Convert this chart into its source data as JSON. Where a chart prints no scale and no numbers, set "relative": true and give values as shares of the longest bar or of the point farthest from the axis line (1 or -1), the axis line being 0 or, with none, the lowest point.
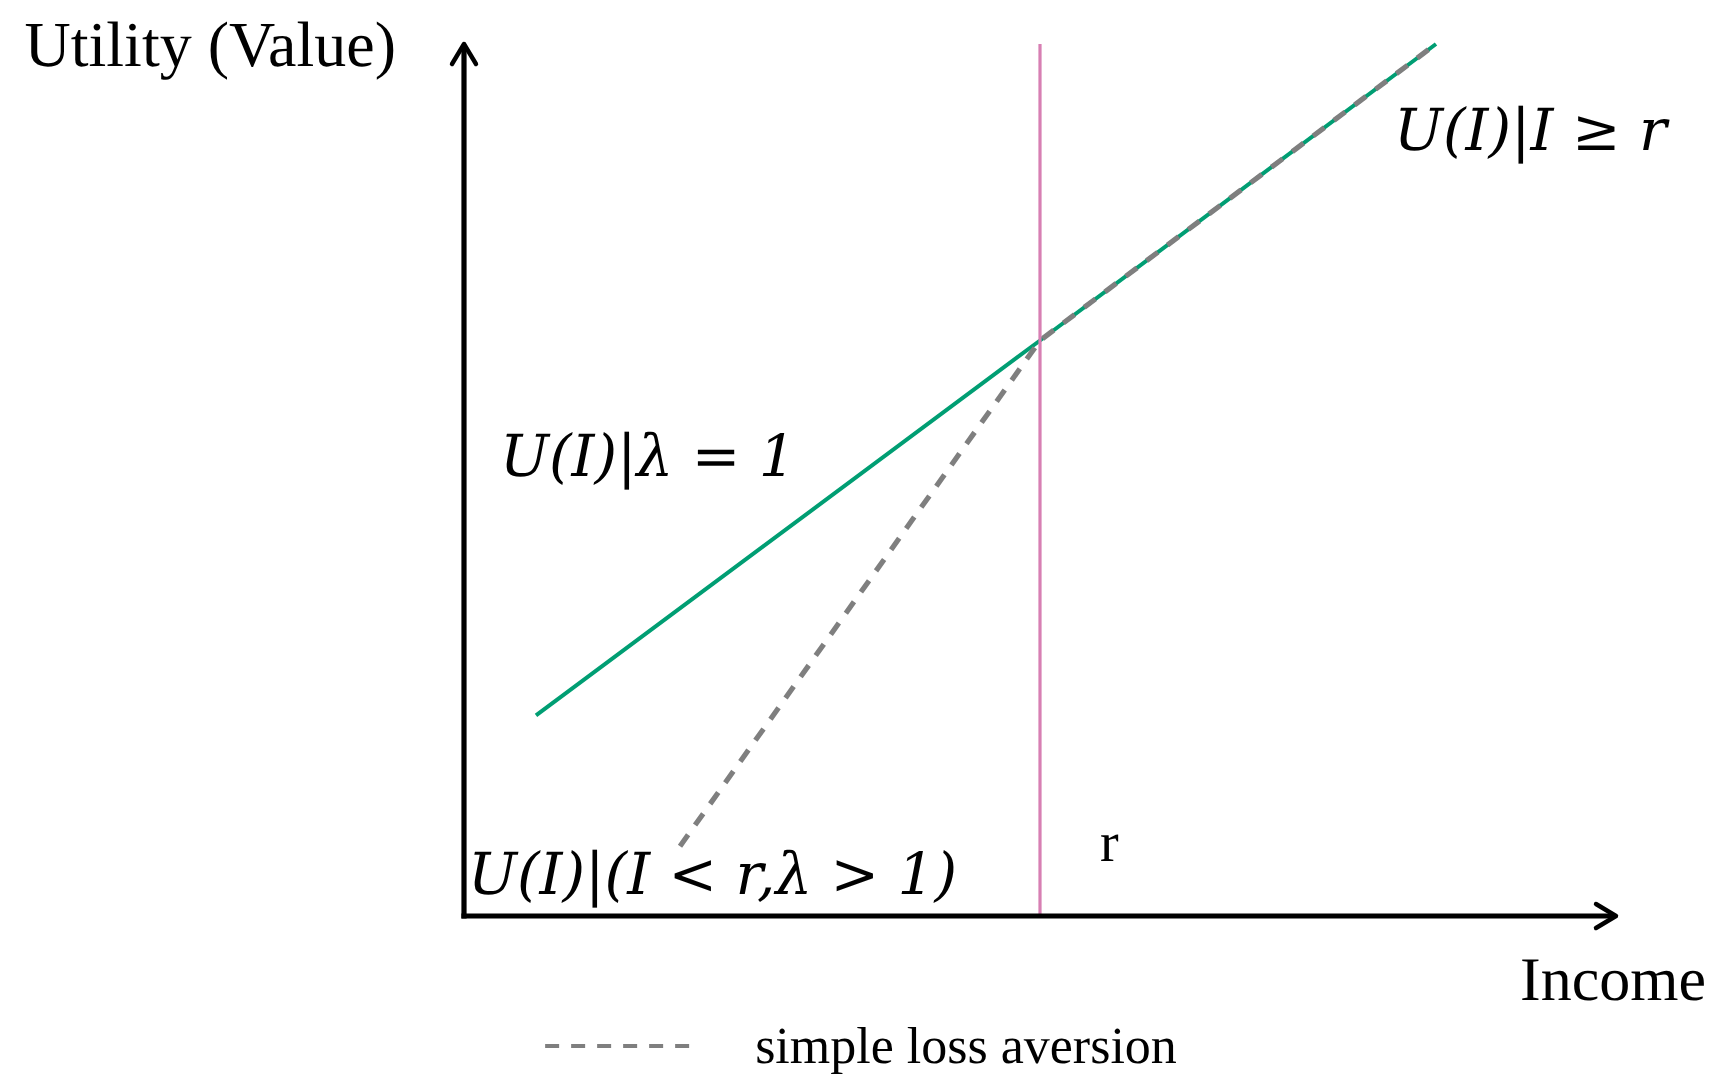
{
  "chart_data": {
    "type": "line",
    "xlabel": "Income",
    "ylabel": "Utility (Value)",
    "relative": true,
    "categories": [
      null,
      null,
      null,
      null,
      null,
      null,
      null,
      null,
      null,
      null,
      null,
      null,
      null,
      null,
      null,
      null,
      null,
      null,
      null,
      null,
      null,
      null,
      null,
      null,
      null,
      null,
      null,
      null,
      null,
      null,
      null,
      null,
      null
    ],
    "series": [
      {
        "color": "#009e73",
        "line_style": "solid",
        "values": [
          null,
          null,
          0.23,
          null,
          null,
          null,
          null,
          null,
          null,
          null,
          null,
          null,
          null,
          null,
          null,
          null,
          0.66,
          null,
          null,
          null,
          null,
          null,
          null,
          null,
          null,
          null,
          null,
          1,
          null,
          null,
          null,
          null,
          null
        ]
      },
      {
        "name": "simple loss aversion",
        "color": "#7f7f7f",
        "line_style": "dashed",
        "values": [
          null,
          null,
          null,
          null,
          null,
          null,
          0.08,
          null,
          null,
          null,
          null,
          null,
          null,
          null,
          null,
          null,
          0.66,
          null,
          null,
          null,
          null,
          null,
          null,
          null,
          null,
          null,
          null,
          1,
          null,
          null,
          null,
          null,
          null
        ]
      }
    ],
    "annotations": [
      "U(I)|I ≥ r",
      "U(I)|λ = 1",
      "U(I)|(I < r,λ > 1)",
      "r"
    ],
    "marker": "none",
    "legend": "bottom"
  }
}
